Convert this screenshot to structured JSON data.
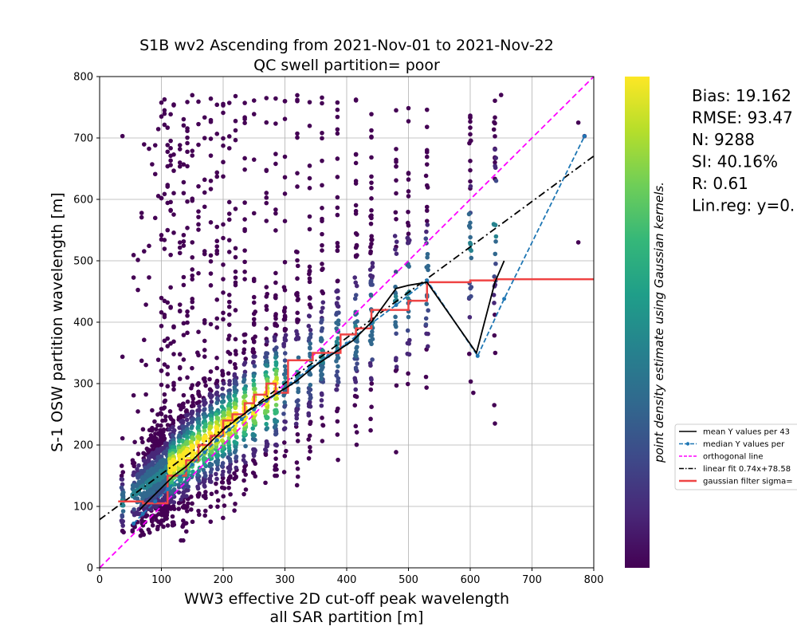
{
  "chart_data": {
    "type": "scatter",
    "title_line1": "S1B wv2 Ascending from 2021-Nov-01 to 2021-Nov-22",
    "title_line2": "QC swell partition= poor",
    "xlabel_line1": "WW3 effective 2D cut-off peak wavelength",
    "xlabel_line2": "all SAR partition [m]",
    "ylabel": "S-1 OSW partition wavelength [m]",
    "xlim": [
      0,
      800
    ],
    "ylim": [
      0,
      800
    ],
    "xticks": [
      0,
      100,
      200,
      300,
      400,
      500,
      600,
      700,
      800
    ],
    "yticks": [
      0,
      100,
      200,
      300,
      400,
      500,
      600,
      700,
      800
    ],
    "grid": true,
    "colorbar_label": "point density estimate using Gaussian kernels.",
    "colormap": [
      "#440154",
      "#482878",
      "#3e4989",
      "#31688e",
      "#26828e",
      "#1f9e89",
      "#35b779",
      "#6ece58",
      "#b5de2b",
      "#fde725"
    ],
    "stats": [
      "Bias: 19.162",
      "RMSE: 93.47",
      "N: 9288",
      "SI: 40.16%",
      "R: 0.61",
      "Lin.reg: y=0."
    ],
    "legend": [
      {
        "label": "mean Y values per 43",
        "color": "#000000",
        "style": "solid"
      },
      {
        "label": "median Y values per",
        "color": "#1f77b4",
        "style": "dash-marker"
      },
      {
        "label": "orthogonal line",
        "color": "#ff00ff",
        "style": "dashed"
      },
      {
        "label": "linear fit 0.74x+78.58",
        "color": "#000000",
        "style": "dashdot"
      },
      {
        "label": "gaussian filter sigma=",
        "color": "#ef4444",
        "style": "thick"
      }
    ],
    "x_columns": [
      37,
      55,
      62,
      68,
      72,
      75,
      80,
      85,
      90,
      95,
      100,
      105,
      110,
      115,
      120,
      130,
      136,
      142,
      150,
      160,
      170,
      180,
      190,
      200,
      210,
      220,
      235,
      250,
      270,
      285,
      300,
      320,
      340,
      360,
      385,
      415,
      440,
      480,
      500,
      530,
      600,
      640
    ],
    "orthogonal_line": {
      "x": [
        0,
        800
      ],
      "y": [
        0,
        800
      ]
    },
    "linear_fit": {
      "slope": 0.74,
      "intercept": 78.58
    },
    "mean_series": {
      "x": [
        65,
        80,
        100,
        120,
        140,
        160,
        180,
        200,
        220,
        240,
        260,
        280,
        300,
        320,
        350,
        380,
        410,
        440,
        480,
        500,
        530,
        610,
        640,
        655
      ],
      "y": [
        95,
        110,
        130,
        150,
        165,
        185,
        205,
        225,
        240,
        255,
        268,
        280,
        292,
        305,
        330,
        350,
        370,
        400,
        455,
        460,
        465,
        350,
        465,
        500
      ]
    },
    "median_series": {
      "x": [
        55,
        70,
        90,
        110,
        130,
        150,
        170,
        190,
        210,
        230,
        250,
        270,
        290,
        310,
        340,
        370,
        400,
        440,
        480,
        530,
        612,
        655,
        785
      ],
      "y": [
        72,
        88,
        108,
        128,
        148,
        168,
        188,
        208,
        225,
        242,
        258,
        272,
        285,
        300,
        325,
        345,
        365,
        398,
        428,
        468,
        345,
        438,
        703
      ]
    },
    "gaussian_filter_series": {
      "x": [
        30,
        70,
        70,
        110,
        110,
        140,
        140,
        160,
        160,
        180,
        180,
        200,
        200,
        215,
        215,
        235,
        235,
        250,
        250,
        270,
        270,
        285,
        285,
        305,
        305,
        345,
        345,
        390,
        390,
        415,
        415,
        440,
        440,
        500,
        500,
        530,
        530,
        600,
        600,
        640,
        640,
        800
      ],
      "y": [
        108,
        108,
        105,
        105,
        150,
        150,
        175,
        175,
        200,
        200,
        215,
        215,
        240,
        240,
        250,
        250,
        268,
        268,
        282,
        282,
        300,
        300,
        285,
        285,
        338,
        338,
        350,
        350,
        380,
        380,
        390,
        390,
        420,
        420,
        435,
        435,
        465,
        465,
        468,
        468,
        470,
        470
      ]
    }
  }
}
